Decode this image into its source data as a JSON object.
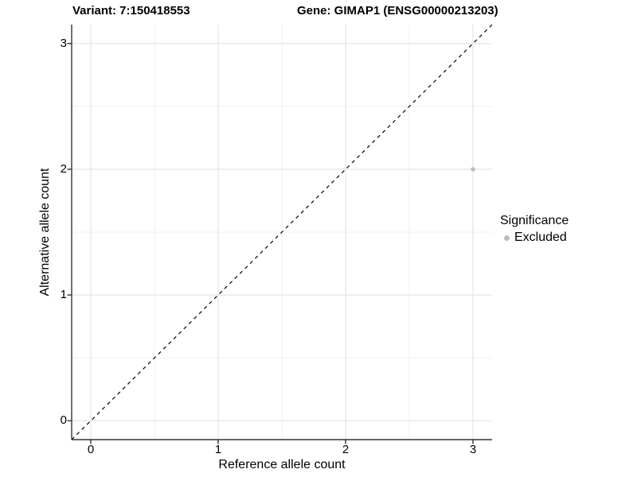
{
  "header": {
    "variant_title": "Variant: 7:150418553",
    "gene_title": "Gene: GIMAP1 (ENSG00000213203)"
  },
  "chart_data": {
    "type": "scatter",
    "xlabel": "Reference allele count",
    "ylabel": "Alternative allele count",
    "x_ticks": [
      0,
      1,
      2,
      3
    ],
    "y_ticks": [
      0,
      1,
      2,
      3
    ],
    "x_minor_ticks": [
      0.5,
      1.5,
      2.5
    ],
    "y_minor_ticks": [
      0.5,
      1.5,
      2.5
    ],
    "xlim": [
      -0.15,
      3.15
    ],
    "ylim": [
      -0.15,
      3.15
    ],
    "grid": "major-and-minor",
    "points": [
      {
        "x": 3,
        "y": 2,
        "series": "Excluded"
      }
    ],
    "identity_line": {
      "slope": 1,
      "intercept": 0,
      "style": "dashed"
    },
    "legend": {
      "title": "Significance",
      "position": "right",
      "items": [
        {
          "label": "Excluded",
          "color": "#bdbdbd"
        }
      ]
    }
  },
  "colors": {
    "background": "#ffffff",
    "grid_major": "#e4e4e4",
    "grid_minor": "#f1f1f1",
    "axis": "#333333",
    "dashed_line": "#000000",
    "point": "#bdbdbd",
    "text": "#000000"
  }
}
